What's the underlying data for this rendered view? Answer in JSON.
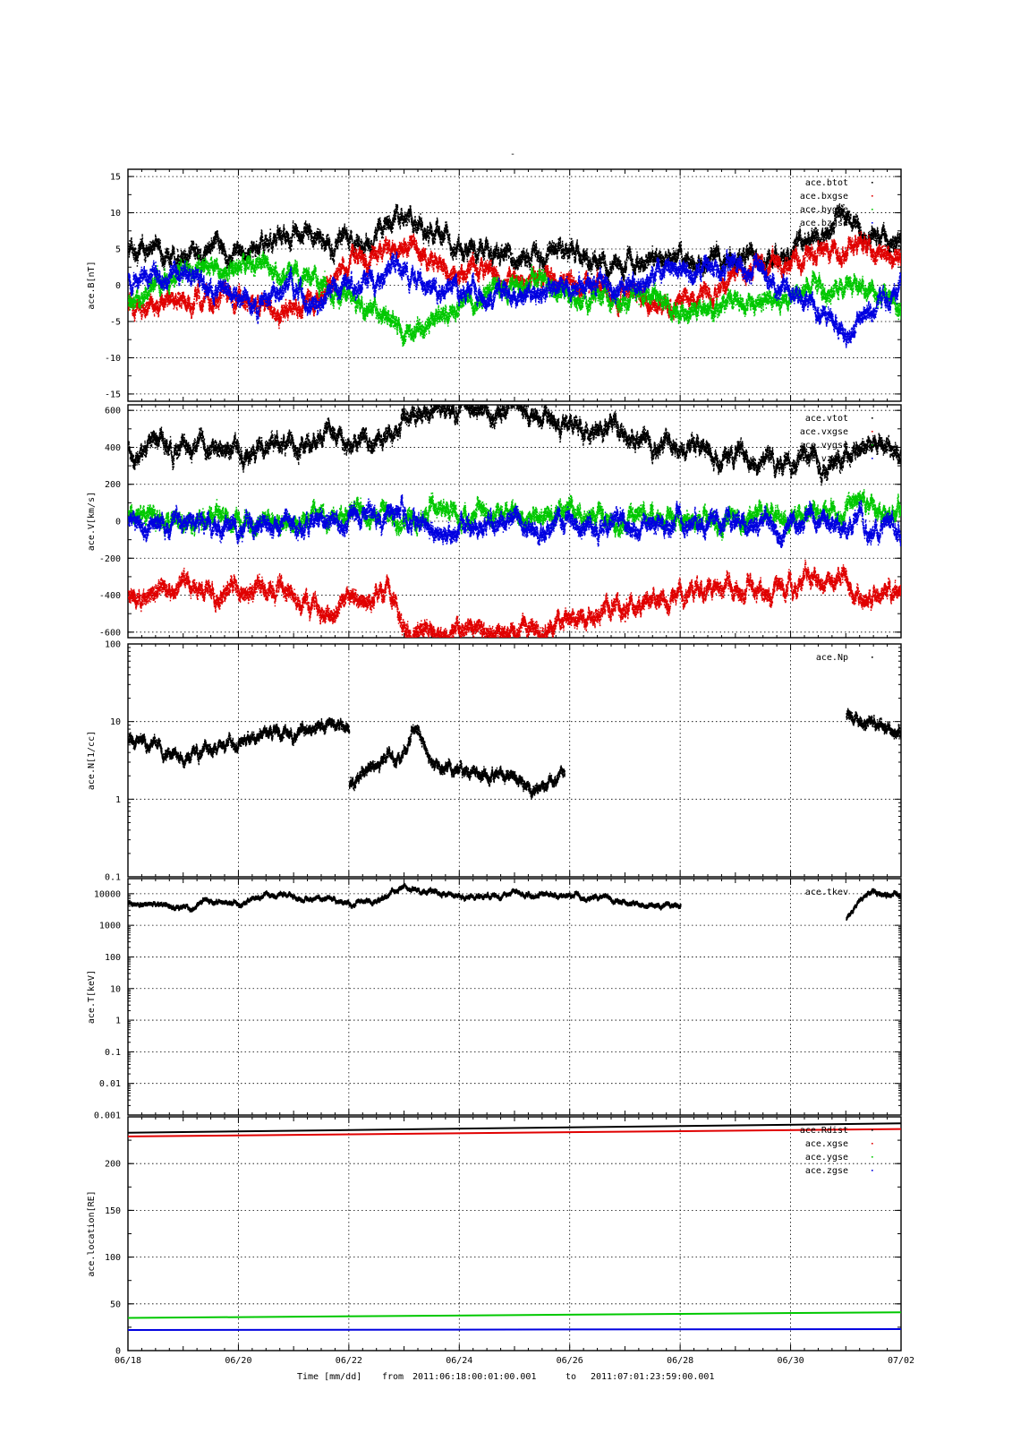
{
  "header_mark": "-",
  "footer": {
    "xlabel": "Time [mm/dd]",
    "from_label": "from",
    "from_value": "2011:06:18:00:01:00.001",
    "to_label": "to",
    "to_value": "2011:07:01:23:59:00.001"
  },
  "colors": {
    "black": "#000000",
    "red": "#e00000",
    "green": "#00c800",
    "blue": "#0000e0"
  },
  "chart_data": [
    {
      "type": "scatter",
      "ylabel": "ace.B[nT]",
      "yscale": "linear",
      "ylim": [
        -16,
        16
      ],
      "yticks": [
        -15,
        -10,
        -5,
        0,
        5,
        10,
        15
      ],
      "ytick_labels": [
        "-15",
        "-10",
        "-5",
        "0",
        "5",
        "10",
        "15"
      ],
      "xlim": [
        "06/18",
        "07/02"
      ],
      "xticks": [
        "06/18",
        "06/20",
        "06/22",
        "06/24",
        "06/26",
        "06/28",
        "06/30",
        "07/02"
      ],
      "grid": true,
      "legend_position": "top-right",
      "series": [
        {
          "name": "ace.btot",
          "color": "#000000",
          "x": [
            "06/18",
            "06/19",
            "06/20",
            "06/21",
            "06/22",
            "06/23",
            "06/24",
            "06/25",
            "06/26",
            "06/27",
            "06/28",
            "06/29",
            "06/30",
            "07/01",
            "07/02"
          ],
          "y": [
            5,
            4.5,
            5,
            7,
            5,
            10,
            5,
            4,
            5,
            3,
            4,
            4,
            4,
            10,
            5
          ]
        },
        {
          "name": "ace.bxgse",
          "color": "#e00000",
          "x": [
            "06/18",
            "06/19",
            "06/20",
            "06/21",
            "06/22",
            "06/23",
            "06/24",
            "06/25",
            "06/26",
            "06/27",
            "06/28",
            "06/29",
            "06/30",
            "07/01",
            "07/02"
          ],
          "y": [
            -3,
            -2,
            -2,
            -4,
            3,
            5,
            2,
            1,
            0,
            -1,
            -3,
            2,
            3,
            5,
            3
          ]
        },
        {
          "name": "ace.bygse",
          "color": "#00c800",
          "x": [
            "06/18",
            "06/19",
            "06/20",
            "06/21",
            "06/22",
            "06/23",
            "06/24",
            "06/25",
            "06/26",
            "06/27",
            "06/28",
            "06/29",
            "06/30",
            "07/01",
            "07/02"
          ],
          "y": [
            -2,
            2,
            3,
            2,
            -2,
            -6,
            -3,
            0,
            -1,
            -1,
            -3,
            -3,
            -2,
            0,
            -3
          ]
        },
        {
          "name": "ace.bzgse",
          "color": "#0000e0",
          "x": [
            "06/18",
            "06/19",
            "06/20",
            "06/21",
            "06/22",
            "06/23",
            "06/24",
            "06/25",
            "06/26",
            "06/27",
            "06/28",
            "06/29",
            "06/30",
            "07/01",
            "07/02"
          ],
          "y": [
            1,
            2,
            -2,
            -1,
            -1,
            2,
            -1,
            -1,
            0,
            0,
            2,
            3,
            0,
            -7,
            0
          ]
        }
      ]
    },
    {
      "type": "scatter",
      "ylabel": "ace.V[km/s]",
      "yscale": "linear",
      "ylim": [
        -630,
        630
      ],
      "yticks": [
        -600,
        -400,
        -200,
        0,
        200,
        400,
        600
      ],
      "ytick_labels": [
        "-600",
        "-400",
        "-200",
        "0",
        "200",
        "400",
        "600"
      ],
      "xlim": [
        "06/18",
        "07/02"
      ],
      "xticks": [
        "06/18",
        "06/20",
        "06/22",
        "06/24",
        "06/26",
        "06/28",
        "06/30",
        "07/02"
      ],
      "grid": true,
      "legend_position": "top-right",
      "series": [
        {
          "name": "ace.vtot",
          "color": "#000000",
          "x": [
            "06/18",
            "06/19",
            "06/20",
            "06/21",
            "06/21.6",
            "06/22",
            "06/22.8",
            "06/23",
            "06/24",
            "06/25",
            "06/26",
            "06/27",
            "06/28",
            "06/29",
            "06/30",
            "06/30.5",
            "07/01",
            "07/01.3",
            "07/02"
          ],
          "y": [
            410,
            400,
            390,
            400,
            480,
            420,
            440,
            580,
            610,
            600,
            540,
            460,
            400,
            370,
            330,
            320,
            330,
            410,
            400
          ]
        },
        {
          "name": "ace.vxgse",
          "color": "#e00000",
          "x": [
            "06/18",
            "06/19",
            "06/20",
            "06/21",
            "06/21.6",
            "06/22",
            "06/22.8",
            "06/23",
            "06/24",
            "06/25",
            "06/26",
            "06/27",
            "06/28",
            "06/29",
            "06/30",
            "06/30.5",
            "07/01",
            "07/01.3",
            "07/02"
          ],
          "y": [
            -410,
            -400,
            -390,
            -400,
            -480,
            -420,
            -440,
            -580,
            -610,
            -600,
            -540,
            -460,
            -400,
            -370,
            -330,
            -320,
            -330,
            -410,
            -400
          ]
        },
        {
          "name": "ace.vygse",
          "color": "#00c800",
          "x": [
            "06/18",
            "06/19",
            "06/20",
            "06/21",
            "06/22",
            "06/23",
            "06/24",
            "06/25",
            "06/26",
            "06/27",
            "06/28",
            "06/29",
            "06/30",
            "07/01",
            "07/02"
          ],
          "y": [
            30,
            20,
            10,
            10,
            20,
            10,
            40,
            40,
            30,
            20,
            10,
            10,
            10,
            60,
            10
          ]
        },
        {
          "name": "ace.vzgse",
          "color": "#0000e0",
          "x": [
            "06/18",
            "06/19",
            "06/20",
            "06/21",
            "06/22",
            "06/23",
            "06/23.5",
            "06/24",
            "06/25",
            "06/26",
            "06/27",
            "06/28",
            "06/29",
            "06/30",
            "07/01",
            "07/02"
          ],
          "y": [
            0,
            -10,
            -20,
            -20,
            10,
            80,
            -70,
            -20,
            -10,
            -20,
            -20,
            -10,
            -10,
            0,
            -10,
            -20
          ]
        }
      ]
    },
    {
      "type": "scatter",
      "ylabel": "ace.N[1/cc]",
      "yscale": "log",
      "ylim": [
        0.1,
        100
      ],
      "yticks": [
        0.1,
        1,
        10,
        100
      ],
      "ytick_labels": [
        "0.1",
        "1",
        "10",
        "100"
      ],
      "xlim": [
        "06/18",
        "07/02"
      ],
      "xticks": [
        "06/18",
        "06/20",
        "06/22",
        "06/24",
        "06/26",
        "06/28",
        "06/30",
        "07/02"
      ],
      "grid": true,
      "legend_position": "top-right",
      "series": [
        {
          "name": "ace.Np",
          "color": "#000000",
          "segments": [
            {
              "x": [
                "06/18",
                "06/18.5",
                "06/19",
                "06/19.5",
                "06/20",
                "06/20.5",
                "06/21",
                "06/21.5",
                "06/22"
              ],
              "y": [
                6,
                4,
                3.5,
                4,
                6,
                7,
                7,
                9,
                8
              ]
            },
            {
              "x": [
                "06/22",
                "06/22.5",
                "06/23",
                "06/23.2",
                "06/23.5",
                "06/24",
                "06/24.5",
                "06/25",
                "06/25.5",
                "06/25.9"
              ],
              "y": [
                1.5,
                3,
                4,
                9,
                3,
                2.2,
                2,
                1.8,
                1.3,
                2.2
              ]
            },
            {
              "x": [
                "07/01",
                "07/01.3",
                "07/01.6",
                "07/02"
              ],
              "y": [
                12,
                11,
                9,
                6
              ]
            }
          ]
        }
      ]
    },
    {
      "type": "scatter",
      "ylabel": "ace.T[keV]",
      "yscale": "log",
      "ylim": [
        0.001,
        30000
      ],
      "yticks": [
        0.001,
        0.01,
        0.1,
        1,
        10,
        100,
        1000,
        10000
      ],
      "ytick_labels": [
        "0.001",
        "0.01",
        "0.1",
        "1",
        "10",
        "100",
        "1000",
        "10000"
      ],
      "xlim": [
        "06/18",
        "07/02"
      ],
      "xticks": [
        "06/18",
        "06/20",
        "06/22",
        "06/24",
        "06/26",
        "06/28",
        "06/30",
        "07/02"
      ],
      "grid": true,
      "legend_position": "top-right",
      "series": [
        {
          "name": "ace.tkev",
          "color": "#000000",
          "segments": [
            {
              "x": [
                "06/18",
                "06/19",
                "06/20",
                "06/20.5",
                "06/21",
                "06/22",
                "06/22.5",
                "06/23",
                "06/23.5",
                "06/24",
                "06/25",
                "06/26",
                "06/26.5",
                "06/27",
                "06/28"
              ],
              "y": [
                5000,
                4000,
                5000,
                9000,
                8000,
                5000,
                6000,
                15000,
                11000,
                8000,
                9000,
                9000,
                8000,
                5000,
                3500
              ]
            },
            {
              "x": [
                "07/01",
                "07/01.2",
                "07/01.4",
                "07/02"
              ],
              "y": [
                1500,
                6000,
                10000,
                8000
              ]
            }
          ]
        }
      ]
    },
    {
      "type": "line",
      "ylabel": "ace.location[RE]",
      "yscale": "linear",
      "ylim": [
        0,
        250
      ],
      "yticks": [
        0,
        50,
        100,
        150,
        200
      ],
      "ytick_labels": [
        "0",
        "50",
        "100",
        "150",
        "200"
      ],
      "xlim": [
        "06/18",
        "07/02"
      ],
      "xticks": [
        "06/18",
        "06/20",
        "06/22",
        "06/24",
        "06/26",
        "06/28",
        "06/30",
        "07/02"
      ],
      "xtick_labels": [
        "06/18",
        "06/20",
        "06/22",
        "06/24",
        "06/26",
        "06/28",
        "06/30",
        "07/02"
      ],
      "grid": true,
      "legend_position": "top-right",
      "series": [
        {
          "name": "ace.Rdist",
          "color": "#000000",
          "x": [
            "06/18",
            "07/02"
          ],
          "y": [
            233,
            243
          ]
        },
        {
          "name": "ace.xgse",
          "color": "#e00000",
          "x": [
            "06/18",
            "07/02"
          ],
          "y": [
            229,
            237
          ]
        },
        {
          "name": "ace.ygse",
          "color": "#00c800",
          "x": [
            "06/18",
            "07/02"
          ],
          "y": [
            35,
            41
          ]
        },
        {
          "name": "ace.zgse",
          "color": "#0000e0",
          "x": [
            "06/18",
            "07/02"
          ],
          "y": [
            22,
            23
          ]
        }
      ]
    }
  ]
}
